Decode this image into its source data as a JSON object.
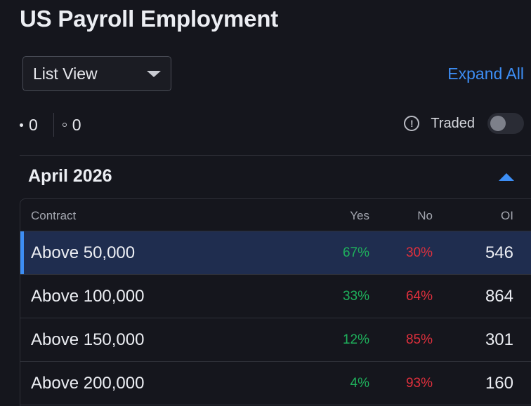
{
  "title": "US Payroll Employment",
  "view_select": {
    "value": "List View"
  },
  "expand_all_label": "Expand All",
  "stats": {
    "filled_count": "0",
    "hollow_count": "0"
  },
  "traded": {
    "label": "Traded",
    "on": false
  },
  "section": {
    "title": "April 2026",
    "expanded": true
  },
  "table": {
    "headers": {
      "contract": "Contract",
      "yes": "Yes",
      "no": "No",
      "oi": "OI"
    },
    "rows": [
      {
        "contract": "Above 50,000",
        "yes": "67%",
        "no": "30%",
        "oi": "546",
        "selected": true
      },
      {
        "contract": "Above 100,000",
        "yes": "33%",
        "no": "64%",
        "oi": "864",
        "selected": false
      },
      {
        "contract": "Above 150,000",
        "yes": "12%",
        "no": "85%",
        "oi": "301",
        "selected": false
      },
      {
        "contract": "Above 200,000",
        "yes": "4%",
        "no": "93%",
        "oi": "160",
        "selected": false
      }
    ]
  },
  "colors": {
    "background": "#15161d",
    "accent": "#3d8ef5",
    "yes": "#1fb15c",
    "no": "#e0303d",
    "selected_row": "#1f2d4f"
  },
  "icons": {
    "dropdown": "chevron-down-icon",
    "collapse": "chevron-up-icon",
    "info": "info-icon"
  }
}
